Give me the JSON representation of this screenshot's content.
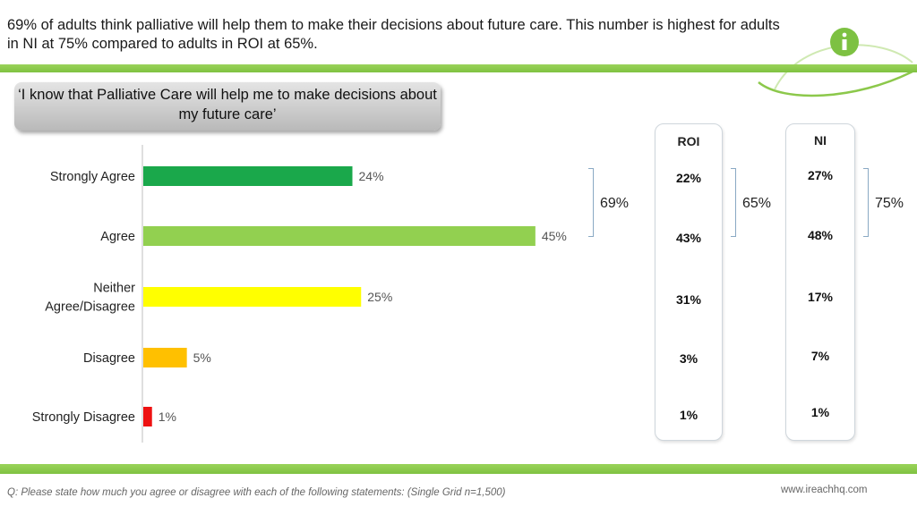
{
  "headline": "69% of adults think palliative will help them to make their decisions about future care. This number is highest for adults in NI at 75% compared to adults in ROI at 65%.",
  "statement": "‘I know that Palliative Care will help me to make decisions about my future care’",
  "colors": {
    "accent": "#7fc241",
    "strongly_agree": "#1aa84b",
    "agree": "#92d050",
    "neither": "#ffff00",
    "disagree": "#ffc000",
    "strongly_disagree": "#ee1111"
  },
  "chart_data": {
    "type": "bar",
    "orientation": "horizontal",
    "categories": [
      "Strongly Agree",
      "Agree",
      "Neither Agree/Disagree",
      "Disagree",
      "Strongly Disagree"
    ],
    "category_lines": [
      [
        "Strongly Agree"
      ],
      [
        "Agree"
      ],
      [
        "Neither",
        "Agree/Disagree"
      ],
      [
        "Disagree"
      ],
      [
        "Strongly Disagree"
      ]
    ],
    "values": [
      24,
      45,
      25,
      5,
      1
    ],
    "labels": [
      "24%",
      "45%",
      "25%",
      "5%",
      "1%"
    ],
    "xlim": [
      0,
      100
    ],
    "roi": {
      "title": "ROI",
      "values": [
        "22%",
        "43%",
        "31%",
        "3%",
        "1%"
      ]
    },
    "ni": {
      "title": "NI",
      "values": [
        "27%",
        "48%",
        "17%",
        "7%",
        "1%"
      ]
    },
    "net_agree": {
      "total": "69%",
      "roi": "65%",
      "ni": "75%"
    }
  },
  "footnote": "Q: Please state how much you agree or disagree with each of the following statements: (Single Grid n=1,500)",
  "url": "www.ireachhq.com",
  "logo_icon": "info-icon"
}
